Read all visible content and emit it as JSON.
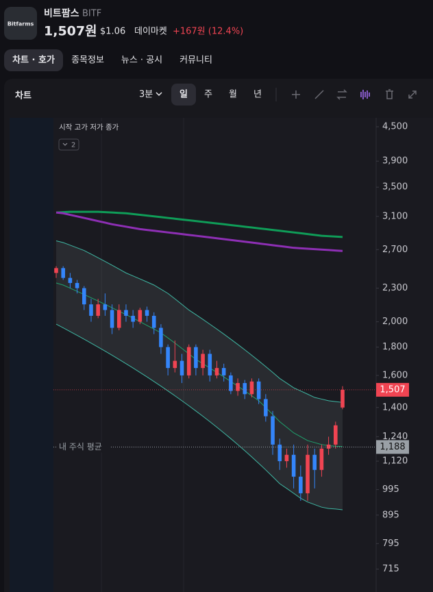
{
  "header": {
    "logo": "Bitfarms",
    "name": "비트팜스",
    "ticker": "BITF",
    "price": "1,507원",
    "usd": "$1.06",
    "market": "데이마켓",
    "change": "+167원 (12.4%)"
  },
  "tabs": [
    "차트 · 호가",
    "종목정보",
    "뉴스 · 공시",
    "커뮤니티"
  ],
  "toolbar": {
    "title": "차트",
    "interval": "3분",
    "periods": [
      "일",
      "주",
      "월",
      "년"
    ]
  },
  "chart_data": {
    "type": "candlestick",
    "legend": "시작 고가 저가 종가",
    "indicator_count": 2,
    "log_scale": true,
    "ylim": [
      650,
      4670
    ],
    "yticks": [
      {
        "value": 4500,
        "label": "4,500"
      },
      {
        "value": 3900,
        "label": "3,900"
      },
      {
        "value": 3500,
        "label": "3,500"
      },
      {
        "value": 3100,
        "label": "3,100"
      },
      {
        "value": 2700,
        "label": "2,700"
      },
      {
        "value": 2300,
        "label": "2,300"
      },
      {
        "value": 2000,
        "label": "2,000"
      },
      {
        "value": 1800,
        "label": "1,800"
      },
      {
        "value": 1600,
        "label": "1,600"
      },
      {
        "value": 1400,
        "label": "1,400"
      },
      {
        "value": 1240,
        "label": "1,240"
      },
      {
        "value": 1120,
        "label": "1,120"
      },
      995,
      895,
      795,
      715
    ],
    "up_color": "#f04452",
    "down_color": "#3485fa",
    "open": [
      2450,
      2500,
      2400,
      2350,
      2300,
      2150,
      2050,
      2150,
      2100,
      1950,
      2100,
      2050,
      2000,
      2100,
      2050,
      1950,
      1800,
      1650,
      1700,
      1600,
      1800,
      1650,
      1750,
      1600,
      1650,
      1600,
      1500,
      1550,
      1480,
      1560,
      1450,
      1350,
      1200,
      1120,
      1150,
      1050,
      980,
      1150,
      1080,
      1180,
      1200,
      1400
    ],
    "close": [
      2500,
      2400,
      2350,
      2300,
      2150,
      2050,
      2150,
      2100,
      1950,
      2100,
      2050,
      2000,
      2100,
      2050,
      1950,
      1800,
      1650,
      1700,
      1600,
      1800,
      1650,
      1750,
      1600,
      1650,
      1600,
      1500,
      1550,
      1480,
      1560,
      1450,
      1350,
      1200,
      1120,
      1150,
      1050,
      980,
      1150,
      1080,
      1180,
      1200,
      1300,
      1507
    ],
    "high": [
      2520,
      2520,
      2450,
      2380,
      2320,
      2200,
      2200,
      2250,
      2150,
      2150,
      2150,
      2100,
      2120,
      2130,
      2080,
      1980,
      1820,
      1850,
      1750,
      1820,
      1820,
      1780,
      1780,
      1700,
      1680,
      1620,
      1580,
      1570,
      1580,
      1580,
      1480,
      1380,
      1230,
      1180,
      1200,
      1100,
      1200,
      1180,
      1200,
      1240,
      1320,
      1530
    ],
    "low": [
      2400,
      2380,
      2300,
      2250,
      2100,
      2000,
      2030,
      2050,
      1900,
      1930,
      2000,
      1950,
      1980,
      2000,
      1900,
      1750,
      1600,
      1620,
      1550,
      1580,
      1600,
      1600,
      1560,
      1580,
      1560,
      1480,
      1470,
      1450,
      1460,
      1420,
      1320,
      1150,
      1080,
      1090,
      1000,
      950,
      950,
      1000,
      1050,
      1150,
      1180,
      1390
    ],
    "bands": {
      "color": "#3fb8a4",
      "middle_color": "#1fa36e",
      "upper": [
        2800,
        2780,
        2750,
        2720,
        2690,
        2650,
        2610,
        2570,
        2530,
        2490,
        2450,
        2420,
        2390,
        2360,
        2330,
        2290,
        2250,
        2200,
        2150,
        2100,
        2060,
        2020,
        1980,
        1940,
        1900,
        1860,
        1820,
        1780,
        1740,
        1700,
        1660,
        1620,
        1580,
        1550,
        1520,
        1500,
        1480,
        1460,
        1450,
        1440,
        1435,
        1430
      ],
      "middle": [
        2350,
        2330,
        2300,
        2270,
        2240,
        2210,
        2180,
        2150,
        2120,
        2090,
        2060,
        2030,
        2000,
        1970,
        1940,
        1910,
        1870,
        1830,
        1790,
        1750,
        1710,
        1680,
        1650,
        1620,
        1590,
        1560,
        1530,
        1500,
        1470,
        1440,
        1400,
        1360,
        1320,
        1290,
        1260,
        1240,
        1220,
        1210,
        1200,
        1195,
        1192,
        1190
      ],
      "lower": [
        1980,
        1950,
        1920,
        1890,
        1860,
        1830,
        1800,
        1770,
        1740,
        1710,
        1680,
        1650,
        1620,
        1590,
        1560,
        1530,
        1500,
        1470,
        1440,
        1410,
        1380,
        1350,
        1320,
        1290,
        1260,
        1230,
        1200,
        1170,
        1140,
        1110,
        1080,
        1050,
        1020,
        1000,
        980,
        960,
        945,
        935,
        925,
        920,
        918,
        915
      ]
    },
    "lines": [
      {
        "color": "#0f9d58",
        "values": [
          3150,
          3155,
          3160,
          3160,
          3160,
          3160,
          3160,
          3155,
          3150,
          3145,
          3140,
          3130,
          3120,
          3110,
          3100,
          3090,
          3080,
          3070,
          3060,
          3050,
          3040,
          3030,
          3020,
          3010,
          3000,
          2990,
          2980,
          2970,
          2960,
          2950,
          2940,
          2930,
          2920,
          2910,
          2900,
          2890,
          2880,
          2870,
          2860,
          2855,
          2850,
          2845
        ]
      },
      {
        "color": "#8e2fb5",
        "values": [
          3150,
          3140,
          3120,
          3100,
          3080,
          3060,
          3040,
          3020,
          3000,
          2985,
          2970,
          2955,
          2940,
          2930,
          2920,
          2910,
          2900,
          2890,
          2880,
          2870,
          2860,
          2850,
          2840,
          2830,
          2820,
          2810,
          2800,
          2790,
          2780,
          2770,
          2760,
          2750,
          2740,
          2730,
          2720,
          2715,
          2710,
          2705,
          2700,
          2695,
          2690,
          2685
        ]
      }
    ],
    "price_line": {
      "value": 1507,
      "label": "1,507",
      "color": "#f04452"
    },
    "avg_line": {
      "name": "내 주식 평균",
      "value": 1188,
      "label": "1,188",
      "color": "#9aa0a6"
    }
  }
}
